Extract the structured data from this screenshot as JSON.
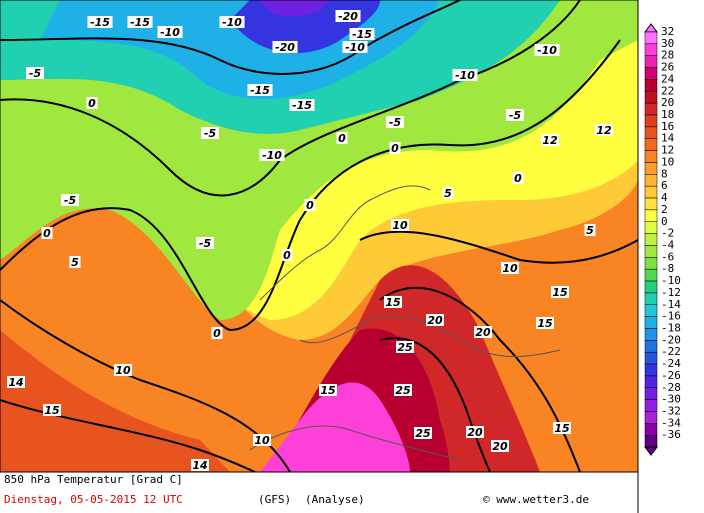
{
  "legend": {
    "labels": [
      "32",
      "30",
      "28",
      "26",
      "24",
      "22",
      "20",
      "18",
      "16",
      "14",
      "12",
      "10",
      "8",
      "6",
      "4",
      "2",
      "0",
      "-2",
      "-4",
      "-6",
      "-8",
      "-10",
      "-12",
      "-14",
      "-16",
      "-18",
      "-20",
      "-22",
      "-24",
      "-26",
      "-28",
      "-30",
      "-32",
      "-34",
      "-36"
    ],
    "colors": [
      "#ff70ff",
      "#ff40d8",
      "#f020b0",
      "#d00070",
      "#b80030",
      "#c01020",
      "#d02828",
      "#e03c20",
      "#e85420",
      "#f06a20",
      "#f88424",
      "#ff9c30",
      "#ffb434",
      "#ffca38",
      "#ffe040",
      "#ffff40",
      "#e0ff40",
      "#c0f040",
      "#a0e840",
      "#80e040",
      "#50d850",
      "#20d080",
      "#20d0b0",
      "#20c8d8",
      "#20b0e8",
      "#2094e8",
      "#2074e0",
      "#2454e0",
      "#3434e0",
      "#5024e0",
      "#7020e0",
      "#9020e0",
      "#a820d8",
      "#8c00a8",
      "#600080"
    ]
  },
  "contour_labels": [
    "-15",
    "-15",
    "-10",
    "-10",
    "-20",
    "-20",
    "-15",
    "-10",
    "-15",
    "-15",
    "-10",
    "-10",
    "-10",
    "-5",
    "-5",
    "-5",
    "-5",
    "0",
    "0",
    "0",
    "0",
    "0",
    "0",
    "0",
    "-5",
    "-5",
    "5",
    "5",
    "5",
    "10",
    "10",
    "10",
    "10",
    "15",
    "15",
    "15",
    "15",
    "15",
    "15",
    "20",
    "20",
    "20",
    "20",
    "25",
    "25",
    "25",
    "0",
    "14",
    "12",
    "14",
    "12"
  ],
  "footer": {
    "title": "850 hPa Temperatur [Grad C]",
    "date": "Dienstag, 05-05-2015  12 UTC",
    "model": "(GFS)",
    "run": "(Analyse)",
    "credit": "© www.wetter3.de"
  }
}
